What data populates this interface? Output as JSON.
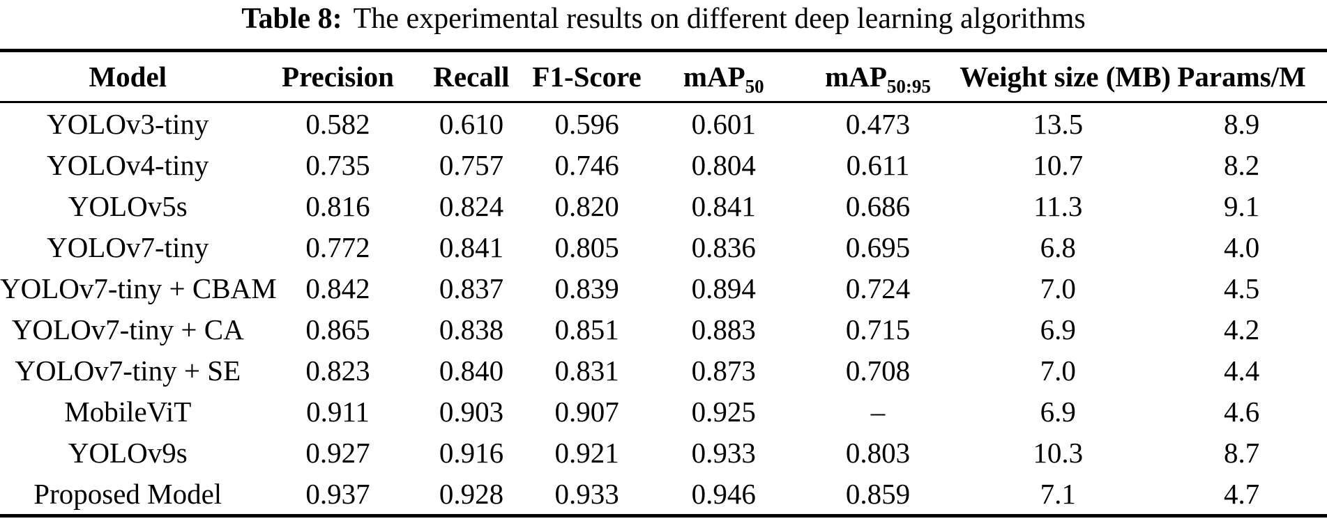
{
  "caption": {
    "label": "Table 8:",
    "text": "The experimental results on different deep learning algorithms"
  },
  "columns": [
    {
      "label": "Model"
    },
    {
      "label": "Precision"
    },
    {
      "label": "Recall"
    },
    {
      "label": "F1-Score"
    },
    {
      "label": "mAP",
      "sub": "50"
    },
    {
      "label": "mAP",
      "sub": "50:95"
    },
    {
      "label": "Weight size (MB)"
    },
    {
      "label": "Params/M"
    }
  ],
  "rows": [
    {
      "model": "YOLOv3-tiny",
      "values": [
        "0.582",
        "0.610",
        "0.596",
        "0.601",
        "0.473",
        "13.5",
        "8.9"
      ]
    },
    {
      "model": "YOLOv4-tiny",
      "values": [
        "0.735",
        "0.757",
        "0.746",
        "0.804",
        "0.611",
        "10.7",
        "8.2"
      ]
    },
    {
      "model": "YOLOv5s",
      "values": [
        "0.816",
        "0.824",
        "0.820",
        "0.841",
        "0.686",
        "11.3",
        "9.1"
      ]
    },
    {
      "model": "YOLOv7-tiny",
      "values": [
        "0.772",
        "0.841",
        "0.805",
        "0.836",
        "0.695",
        "6.8",
        "4.0"
      ]
    },
    {
      "model": "YOLOv7-tiny + CBAM",
      "values": [
        "0.842",
        "0.837",
        "0.839",
        "0.894",
        "0.724",
        "7.0",
        "4.5"
      ]
    },
    {
      "model": "YOLOv7-tiny + CA",
      "values": [
        "0.865",
        "0.838",
        "0.851",
        "0.883",
        "0.715",
        "6.9",
        "4.2"
      ]
    },
    {
      "model": "YOLOv7-tiny + SE",
      "values": [
        "0.823",
        "0.840",
        "0.831",
        "0.873",
        "0.708",
        "7.0",
        "4.4"
      ]
    },
    {
      "model": "MobileViT",
      "values": [
        "0.911",
        "0.903",
        "0.907",
        "0.925",
        "–",
        "6.9",
        "4.6"
      ]
    },
    {
      "model": "YOLOv9s",
      "values": [
        "0.927",
        "0.916",
        "0.921",
        "0.933",
        "0.803",
        "10.3",
        "8.7"
      ]
    },
    {
      "model": "Proposed Model",
      "values": [
        "0.937",
        "0.928",
        "0.933",
        "0.946",
        "0.859",
        "7.1",
        "4.7"
      ]
    }
  ],
  "colors": {
    "text": "#000000",
    "background": "#ffffff",
    "rule": "#000000"
  }
}
